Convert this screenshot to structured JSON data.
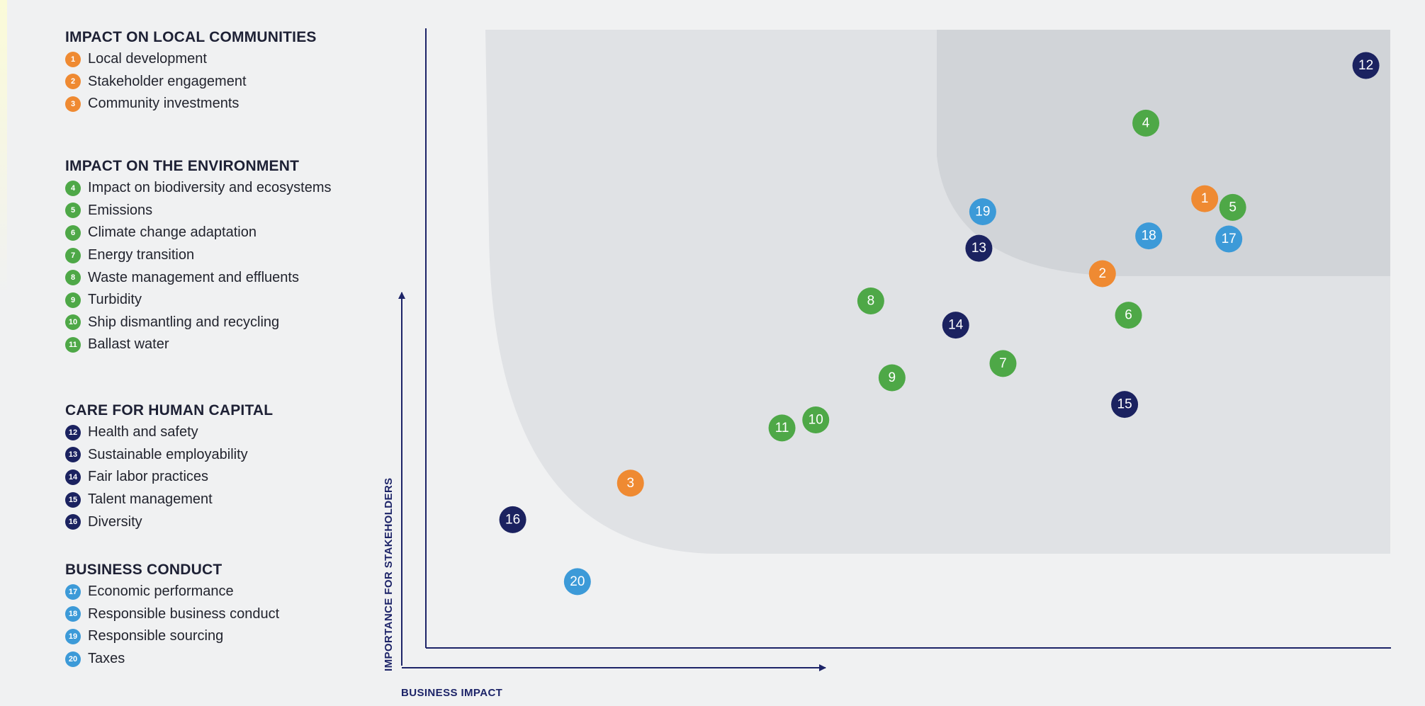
{
  "colors": {
    "communities": "#ef8a32",
    "environment": "#4ea847",
    "human": "#1b2260",
    "business": "#3c9ad8",
    "axis": "#1d2468",
    "band_light": "#e0e2e5",
    "band_dark": "#d1d4d8"
  },
  "legend": {
    "groups": [
      {
        "title": "IMPACT ON LOCAL COMMUNITIES",
        "color_key": "communities",
        "items": [
          {
            "num": "1",
            "label": "Local development"
          },
          {
            "num": "2",
            "label": "Stakeholder engagement"
          },
          {
            "num": "3",
            "label": "Community investments"
          }
        ]
      },
      {
        "title": "IMPACT ON THE ENVIRONMENT",
        "color_key": "environment",
        "items": [
          {
            "num": "4",
            "label": "Impact on biodiversity and ecosystems"
          },
          {
            "num": "5",
            "label": "Emissions"
          },
          {
            "num": "6",
            "label": "Climate change adaptation"
          },
          {
            "num": "7",
            "label": "Energy transition"
          },
          {
            "num": "8",
            "label": "Waste management and effluents"
          },
          {
            "num": "9",
            "label": "Turbidity"
          },
          {
            "num": "10",
            "label": "Ship dismantling and recycling"
          },
          {
            "num": "11",
            "label": "Ballast water"
          }
        ]
      },
      {
        "title": "CARE FOR HUMAN CAPITAL",
        "color_key": "human",
        "items": [
          {
            "num": "12",
            "label": "Health and safety"
          },
          {
            "num": "13",
            "label": "Sustainable employability"
          },
          {
            "num": "14",
            "label": "Fair labor practices"
          },
          {
            "num": "15",
            "label": "Talent management"
          },
          {
            "num": "16",
            "label": "Diversity"
          }
        ]
      },
      {
        "title": "BUSINESS CONDUCT",
        "color_key": "business",
        "items": [
          {
            "num": "17",
            "label": "Economic performance"
          },
          {
            "num": "18",
            "label": "Responsible business conduct"
          },
          {
            "num": "19",
            "label": "Responsible sourcing"
          },
          {
            "num": "20",
            "label": "Taxes"
          }
        ]
      }
    ]
  },
  "chart_data": {
    "type": "scatter",
    "xlabel": "BUSINESS IMPACT",
    "ylabel": "IMPORTANCE FOR STAKEHOLDERS",
    "xlim": [
      0,
      100
    ],
    "ylim": [
      0,
      100
    ],
    "grid": false,
    "legend_placement": "left",
    "points": [
      {
        "id": "1",
        "group": "communities",
        "x": 80.7,
        "y": 72.5
      },
      {
        "id": "2",
        "group": "communities",
        "x": 70.1,
        "y": 60.4
      },
      {
        "id": "3",
        "group": "communities",
        "x": 21.2,
        "y": 26.6
      },
      {
        "id": "4",
        "group": "environment",
        "x": 74.6,
        "y": 84.7
      },
      {
        "id": "5",
        "group": "environment",
        "x": 83.6,
        "y": 71.1
      },
      {
        "id": "6",
        "group": "environment",
        "x": 72.8,
        "y": 53.7
      },
      {
        "id": "7",
        "group": "environment",
        "x": 59.8,
        "y": 45.9
      },
      {
        "id": "8",
        "group": "environment",
        "x": 46.1,
        "y": 56.0
      },
      {
        "id": "9",
        "group": "environment",
        "x": 48.3,
        "y": 43.6
      },
      {
        "id": "10",
        "group": "environment",
        "x": 40.4,
        "y": 36.8
      },
      {
        "id": "11",
        "group": "environment",
        "x": 36.9,
        "y": 35.5
      },
      {
        "id": "12",
        "group": "human",
        "x": 97.4,
        "y": 94.0
      },
      {
        "id": "13",
        "group": "human",
        "x": 57.3,
        "y": 64.5
      },
      {
        "id": "14",
        "group": "human",
        "x": 54.9,
        "y": 52.1
      },
      {
        "id": "15",
        "group": "human",
        "x": 72.4,
        "y": 39.3
      },
      {
        "id": "16",
        "group": "human",
        "x": 9.0,
        "y": 20.7
      },
      {
        "id": "17",
        "group": "business",
        "x": 83.2,
        "y": 66.0
      },
      {
        "id": "18",
        "group": "business",
        "x": 74.9,
        "y": 66.5
      },
      {
        "id": "19",
        "group": "business",
        "x": 57.7,
        "y": 70.4
      },
      {
        "id": "20",
        "group": "business",
        "x": 15.7,
        "y": 10.7
      }
    ]
  }
}
